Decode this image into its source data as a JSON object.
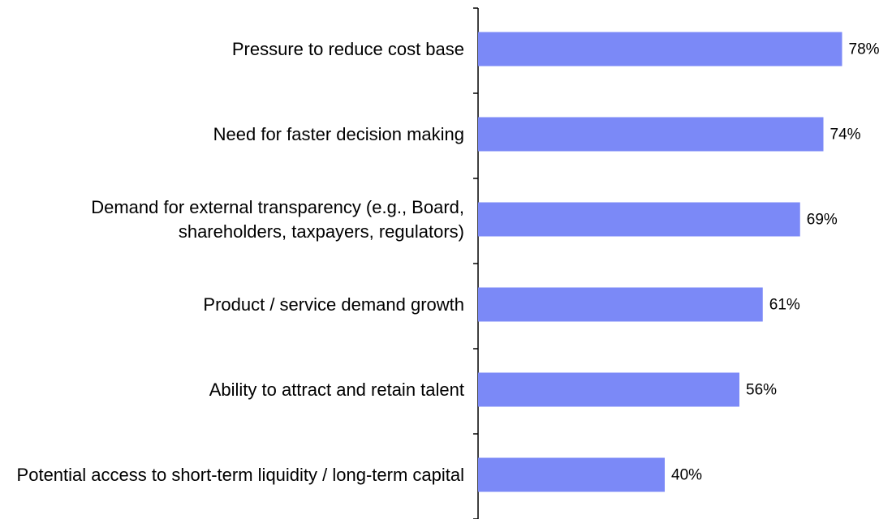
{
  "chart_data": {
    "type": "bar",
    "orientation": "horizontal",
    "categories": [
      "Pressure to reduce cost base",
      "Need for faster decision making",
      "Demand for external transparency (e.g., Board, shareholders, taxpayers, regulators)",
      "Product / service demand growth",
      "Ability to attract and retain talent",
      "Potential access to short-term liquidity / long-term capital"
    ],
    "values": [
      78,
      74,
      69,
      61,
      56,
      40
    ],
    "value_labels": [
      "78%",
      "74%",
      "69%",
      "61%",
      "56%",
      "40%"
    ],
    "color": "#7b89f7",
    "xlim": [
      0,
      88
    ]
  }
}
